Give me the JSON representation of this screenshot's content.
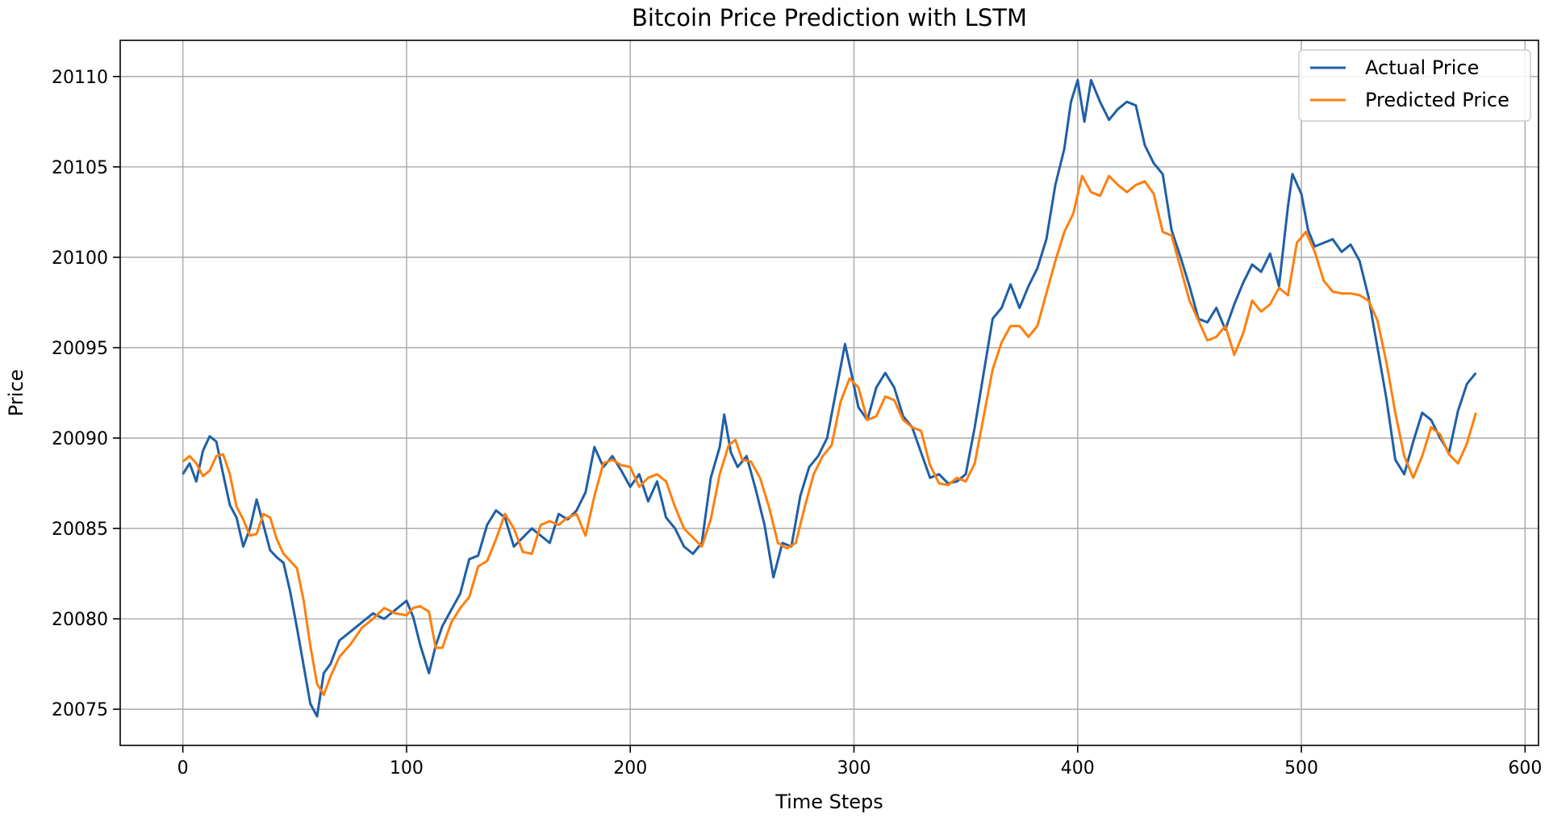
{
  "chart_data": {
    "type": "line",
    "title": "Bitcoin Price Prediction with LSTM",
    "xlabel": "Time Steps",
    "ylabel": "Price",
    "xlim": [
      -28,
      606
    ],
    "ylim": [
      20073.0,
      20112.0
    ],
    "xticks": [
      0,
      100,
      200,
      300,
      400,
      500,
      600
    ],
    "yticks": [
      20075,
      20080,
      20085,
      20090,
      20095,
      20100,
      20105,
      20110
    ],
    "grid": true,
    "legend_position": "top-right",
    "series": [
      {
        "name": "Actual Price",
        "color": "#1f5fa6",
        "points": [
          [
            0,
            20088.0
          ],
          [
            3,
            20088.6
          ],
          [
            6,
            20087.6
          ],
          [
            9,
            20089.3
          ],
          [
            12,
            20090.1
          ],
          [
            15,
            20089.8
          ],
          [
            18,
            20088.0
          ],
          [
            21,
            20086.3
          ],
          [
            24,
            20085.6
          ],
          [
            27,
            20084.0
          ],
          [
            30,
            20085.0
          ],
          [
            33,
            20086.6
          ],
          [
            36,
            20085.2
          ],
          [
            39,
            20083.8
          ],
          [
            42,
            20083.4
          ],
          [
            45,
            20083.1
          ],
          [
            48,
            20081.5
          ],
          [
            51,
            20079.5
          ],
          [
            54,
            20077.4
          ],
          [
            57,
            20075.3
          ],
          [
            60,
            20074.6
          ],
          [
            63,
            20077.0
          ],
          [
            66,
            20077.5
          ],
          [
            70,
            20078.8
          ],
          [
            75,
            20079.3
          ],
          [
            80,
            20079.8
          ],
          [
            85,
            20080.3
          ],
          [
            90,
            20080.0
          ],
          [
            95,
            20080.5
          ],
          [
            100,
            20081.0
          ],
          [
            103,
            20080.1
          ],
          [
            106,
            20078.6
          ],
          [
            110,
            20077.0
          ],
          [
            113,
            20078.5
          ],
          [
            116,
            20079.6
          ],
          [
            120,
            20080.5
          ],
          [
            124,
            20081.4
          ],
          [
            128,
            20083.3
          ],
          [
            132,
            20083.5
          ],
          [
            136,
            20085.2
          ],
          [
            140,
            20086.0
          ],
          [
            144,
            20085.6
          ],
          [
            148,
            20084.0
          ],
          [
            152,
            20084.5
          ],
          [
            156,
            20085.0
          ],
          [
            160,
            20084.6
          ],
          [
            164,
            20084.2
          ],
          [
            168,
            20085.8
          ],
          [
            172,
            20085.5
          ],
          [
            176,
            20086.0
          ],
          [
            180,
            20087.0
          ],
          [
            184,
            20089.5
          ],
          [
            188,
            20088.4
          ],
          [
            192,
            20089.0
          ],
          [
            196,
            20088.2
          ],
          [
            200,
            20087.3
          ],
          [
            204,
            20088.0
          ],
          [
            208,
            20086.5
          ],
          [
            212,
            20087.6
          ],
          [
            216,
            20085.6
          ],
          [
            220,
            20085.0
          ],
          [
            224,
            20084.0
          ],
          [
            228,
            20083.6
          ],
          [
            232,
            20084.2
          ],
          [
            236,
            20087.8
          ],
          [
            240,
            20089.5
          ],
          [
            242,
            20091.3
          ],
          [
            245,
            20089.2
          ],
          [
            248,
            20088.4
          ],
          [
            252,
            20089.0
          ],
          [
            256,
            20087.2
          ],
          [
            260,
            20085.2
          ],
          [
            264,
            20082.3
          ],
          [
            268,
            20084.2
          ],
          [
            272,
            20084.0
          ],
          [
            276,
            20086.8
          ],
          [
            280,
            20088.4
          ],
          [
            284,
            20089.0
          ],
          [
            288,
            20090.0
          ],
          [
            292,
            20092.6
          ],
          [
            296,
            20095.2
          ],
          [
            299,
            20093.5
          ],
          [
            302,
            20091.7
          ],
          [
            306,
            20091.0
          ],
          [
            310,
            20092.8
          ],
          [
            314,
            20093.6
          ],
          [
            318,
            20092.8
          ],
          [
            322,
            20091.2
          ],
          [
            326,
            20090.6
          ],
          [
            330,
            20089.2
          ],
          [
            334,
            20087.8
          ],
          [
            338,
            20088.0
          ],
          [
            342,
            20087.5
          ],
          [
            346,
            20087.6
          ],
          [
            350,
            20088.0
          ],
          [
            354,
            20090.6
          ],
          [
            358,
            20093.6
          ],
          [
            362,
            20096.6
          ],
          [
            366,
            20097.2
          ],
          [
            370,
            20098.5
          ],
          [
            374,
            20097.2
          ],
          [
            378,
            20098.4
          ],
          [
            382,
            20099.4
          ],
          [
            386,
            20101.0
          ],
          [
            390,
            20104.0
          ],
          [
            394,
            20106.0
          ],
          [
            397,
            20108.6
          ],
          [
            400,
            20109.8
          ],
          [
            403,
            20107.5
          ],
          [
            406,
            20109.8
          ],
          [
            410,
            20108.6
          ],
          [
            414,
            20107.6
          ],
          [
            418,
            20108.2
          ],
          [
            422,
            20108.6
          ],
          [
            426,
            20108.4
          ],
          [
            430,
            20106.2
          ],
          [
            434,
            20105.2
          ],
          [
            438,
            20104.6
          ],
          [
            442,
            20101.5
          ],
          [
            446,
            20100.0
          ],
          [
            450,
            20098.4
          ],
          [
            454,
            20096.6
          ],
          [
            458,
            20096.4
          ],
          [
            462,
            20097.2
          ],
          [
            466,
            20096.0
          ],
          [
            470,
            20097.4
          ],
          [
            474,
            20098.6
          ],
          [
            478,
            20099.6
          ],
          [
            482,
            20099.2
          ],
          [
            486,
            20100.2
          ],
          [
            490,
            20098.4
          ],
          [
            494,
            20102.8
          ],
          [
            496,
            20104.6
          ],
          [
            500,
            20103.5
          ],
          [
            503,
            20101.5
          ],
          [
            506,
            20100.6
          ],
          [
            510,
            20100.8
          ],
          [
            514,
            20101.0
          ],
          [
            518,
            20100.3
          ],
          [
            522,
            20100.7
          ],
          [
            526,
            20099.8
          ],
          [
            530,
            20097.8
          ],
          [
            534,
            20095.0
          ],
          [
            538,
            20092.2
          ],
          [
            542,
            20088.8
          ],
          [
            546,
            20088.0
          ],
          [
            550,
            20089.8
          ],
          [
            554,
            20091.4
          ],
          [
            558,
            20091.0
          ],
          [
            562,
            20090.0
          ],
          [
            566,
            20089.2
          ],
          [
            570,
            20091.5
          ],
          [
            574,
            20093.0
          ],
          [
            578,
            20093.6
          ]
        ]
      },
      {
        "name": "Predicted Price",
        "color": "#ff7f0e",
        "points": [
          [
            0,
            20088.7
          ],
          [
            3,
            20089.0
          ],
          [
            6,
            20088.6
          ],
          [
            9,
            20087.9
          ],
          [
            12,
            20088.2
          ],
          [
            15,
            20089.0
          ],
          [
            18,
            20089.1
          ],
          [
            21,
            20088.0
          ],
          [
            24,
            20086.2
          ],
          [
            27,
            20085.5
          ],
          [
            30,
            20084.6
          ],
          [
            33,
            20084.7
          ],
          [
            36,
            20085.8
          ],
          [
            39,
            20085.6
          ],
          [
            42,
            20084.4
          ],
          [
            45,
            20083.6
          ],
          [
            48,
            20083.2
          ],
          [
            51,
            20082.8
          ],
          [
            54,
            20081.0
          ],
          [
            57,
            20078.5
          ],
          [
            60,
            20076.4
          ],
          [
            63,
            20075.8
          ],
          [
            66,
            20076.8
          ],
          [
            70,
            20077.9
          ],
          [
            75,
            20078.6
          ],
          [
            80,
            20079.5
          ],
          [
            85,
            20080.0
          ],
          [
            90,
            20080.6
          ],
          [
            95,
            20080.3
          ],
          [
            100,
            20080.2
          ],
          [
            103,
            20080.6
          ],
          [
            106,
            20080.7
          ],
          [
            110,
            20080.4
          ],
          [
            113,
            20078.4
          ],
          [
            116,
            20078.4
          ],
          [
            120,
            20079.8
          ],
          [
            124,
            20080.6
          ],
          [
            128,
            20081.2
          ],
          [
            132,
            20082.9
          ],
          [
            136,
            20083.2
          ],
          [
            140,
            20084.4
          ],
          [
            144,
            20085.8
          ],
          [
            148,
            20085.0
          ],
          [
            152,
            20083.7
          ],
          [
            156,
            20083.6
          ],
          [
            160,
            20085.2
          ],
          [
            164,
            20085.4
          ],
          [
            168,
            20085.2
          ],
          [
            172,
            20085.6
          ],
          [
            176,
            20085.8
          ],
          [
            180,
            20084.6
          ],
          [
            184,
            20086.8
          ],
          [
            188,
            20088.6
          ],
          [
            192,
            20088.8
          ],
          [
            196,
            20088.5
          ],
          [
            200,
            20088.4
          ],
          [
            204,
            20087.3
          ],
          [
            208,
            20087.8
          ],
          [
            212,
            20088.0
          ],
          [
            216,
            20087.6
          ],
          [
            220,
            20086.2
          ],
          [
            224,
            20085.0
          ],
          [
            228,
            20084.5
          ],
          [
            232,
            20084.0
          ],
          [
            236,
            20085.5
          ],
          [
            240,
            20088.0
          ],
          [
            244,
            20089.6
          ],
          [
            247,
            20089.9
          ],
          [
            250,
            20088.8
          ],
          [
            254,
            20088.7
          ],
          [
            258,
            20087.8
          ],
          [
            262,
            20086.2
          ],
          [
            266,
            20084.2
          ],
          [
            270,
            20083.9
          ],
          [
            274,
            20084.2
          ],
          [
            278,
            20086.2
          ],
          [
            282,
            20088.0
          ],
          [
            286,
            20089.0
          ],
          [
            290,
            20089.6
          ],
          [
            294,
            20092.0
          ],
          [
            298,
            20093.3
          ],
          [
            302,
            20092.8
          ],
          [
            306,
            20091.0
          ],
          [
            310,
            20091.2
          ],
          [
            314,
            20092.3
          ],
          [
            318,
            20092.1
          ],
          [
            322,
            20091.0
          ],
          [
            326,
            20090.6
          ],
          [
            330,
            20090.4
          ],
          [
            334,
            20088.5
          ],
          [
            338,
            20087.5
          ],
          [
            342,
            20087.4
          ],
          [
            346,
            20087.8
          ],
          [
            350,
            20087.6
          ],
          [
            354,
            20088.6
          ],
          [
            358,
            20091.2
          ],
          [
            362,
            20093.8
          ],
          [
            366,
            20095.3
          ],
          [
            370,
            20096.2
          ],
          [
            374,
            20096.2
          ],
          [
            378,
            20095.6
          ],
          [
            382,
            20096.2
          ],
          [
            386,
            20098.0
          ],
          [
            390,
            20099.8
          ],
          [
            394,
            20101.4
          ],
          [
            398,
            20102.4
          ],
          [
            402,
            20104.5
          ],
          [
            406,
            20103.6
          ],
          [
            410,
            20103.4
          ],
          [
            414,
            20104.5
          ],
          [
            418,
            20104.0
          ],
          [
            422,
            20103.6
          ],
          [
            426,
            20104.0
          ],
          [
            430,
            20104.2
          ],
          [
            434,
            20103.5
          ],
          [
            438,
            20101.4
          ],
          [
            442,
            20101.2
          ],
          [
            446,
            20099.4
          ],
          [
            450,
            20097.6
          ],
          [
            454,
            20096.5
          ],
          [
            458,
            20095.4
          ],
          [
            462,
            20095.6
          ],
          [
            466,
            20096.2
          ],
          [
            470,
            20094.6
          ],
          [
            474,
            20095.8
          ],
          [
            478,
            20097.6
          ],
          [
            482,
            20097.0
          ],
          [
            486,
            20097.4
          ],
          [
            490,
            20098.3
          ],
          [
            494,
            20097.9
          ],
          [
            498,
            20100.8
          ],
          [
            502,
            20101.4
          ],
          [
            506,
            20100.3
          ],
          [
            510,
            20098.7
          ],
          [
            514,
            20098.1
          ],
          [
            518,
            20098.0
          ],
          [
            522,
            20098.0
          ],
          [
            526,
            20097.9
          ],
          [
            530,
            20097.6
          ],
          [
            534,
            20096.5
          ],
          [
            538,
            20094.2
          ],
          [
            542,
            20091.4
          ],
          [
            546,
            20089.0
          ],
          [
            550,
            20087.8
          ],
          [
            554,
            20089.0
          ],
          [
            558,
            20090.6
          ],
          [
            562,
            20090.2
          ],
          [
            566,
            20089.1
          ],
          [
            570,
            20088.6
          ],
          [
            574,
            20089.7
          ],
          [
            578,
            20091.4
          ]
        ]
      }
    ]
  }
}
